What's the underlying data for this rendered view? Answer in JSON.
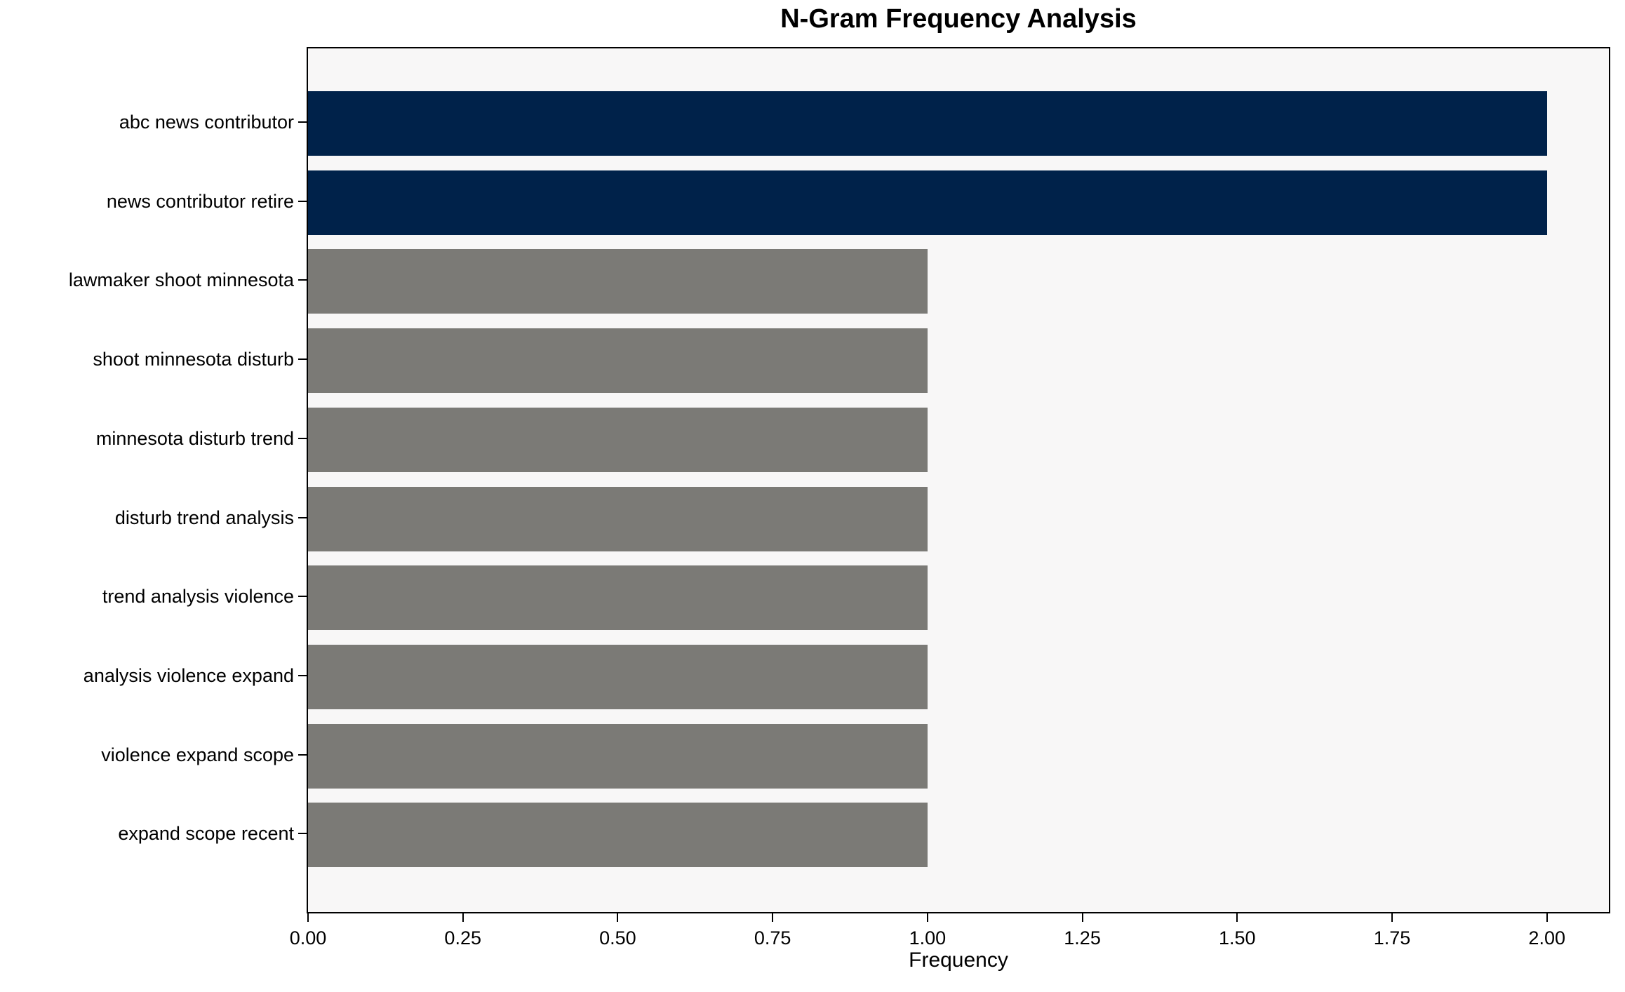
{
  "chart_data": {
    "type": "bar",
    "orientation": "horizontal",
    "title": "N-Gram Frequency Analysis",
    "xlabel": "Frequency",
    "ylabel": "",
    "categories": [
      "abc news contributor",
      "news contributor retire",
      "lawmaker shoot minnesota",
      "shoot minnesota disturb",
      "minnesota disturb trend",
      "disturb trend analysis",
      "trend analysis violence",
      "analysis violence expand",
      "violence expand scope",
      "expand scope recent"
    ],
    "values": [
      2,
      2,
      1,
      1,
      1,
      1,
      1,
      1,
      1,
      1
    ],
    "bar_colors": [
      "#00224a",
      "#00224a",
      "#7b7a76",
      "#7b7a76",
      "#7b7a76",
      "#7b7a76",
      "#7b7a76",
      "#7b7a76",
      "#7b7a76",
      "#7b7a76"
    ],
    "xlim": [
      0,
      2.1
    ],
    "xticks": [
      0.0,
      0.25,
      0.5,
      0.75,
      1.0,
      1.25,
      1.5,
      1.75,
      2.0
    ],
    "xtick_labels": [
      "0.00",
      "0.25",
      "0.50",
      "0.75",
      "1.00",
      "1.25",
      "1.50",
      "1.75",
      "2.00"
    ],
    "grid": false,
    "legend_position": "none",
    "plot_background": "#f8f7f7",
    "highlight_color": "#00224a",
    "default_color": "#7b7a76"
  }
}
